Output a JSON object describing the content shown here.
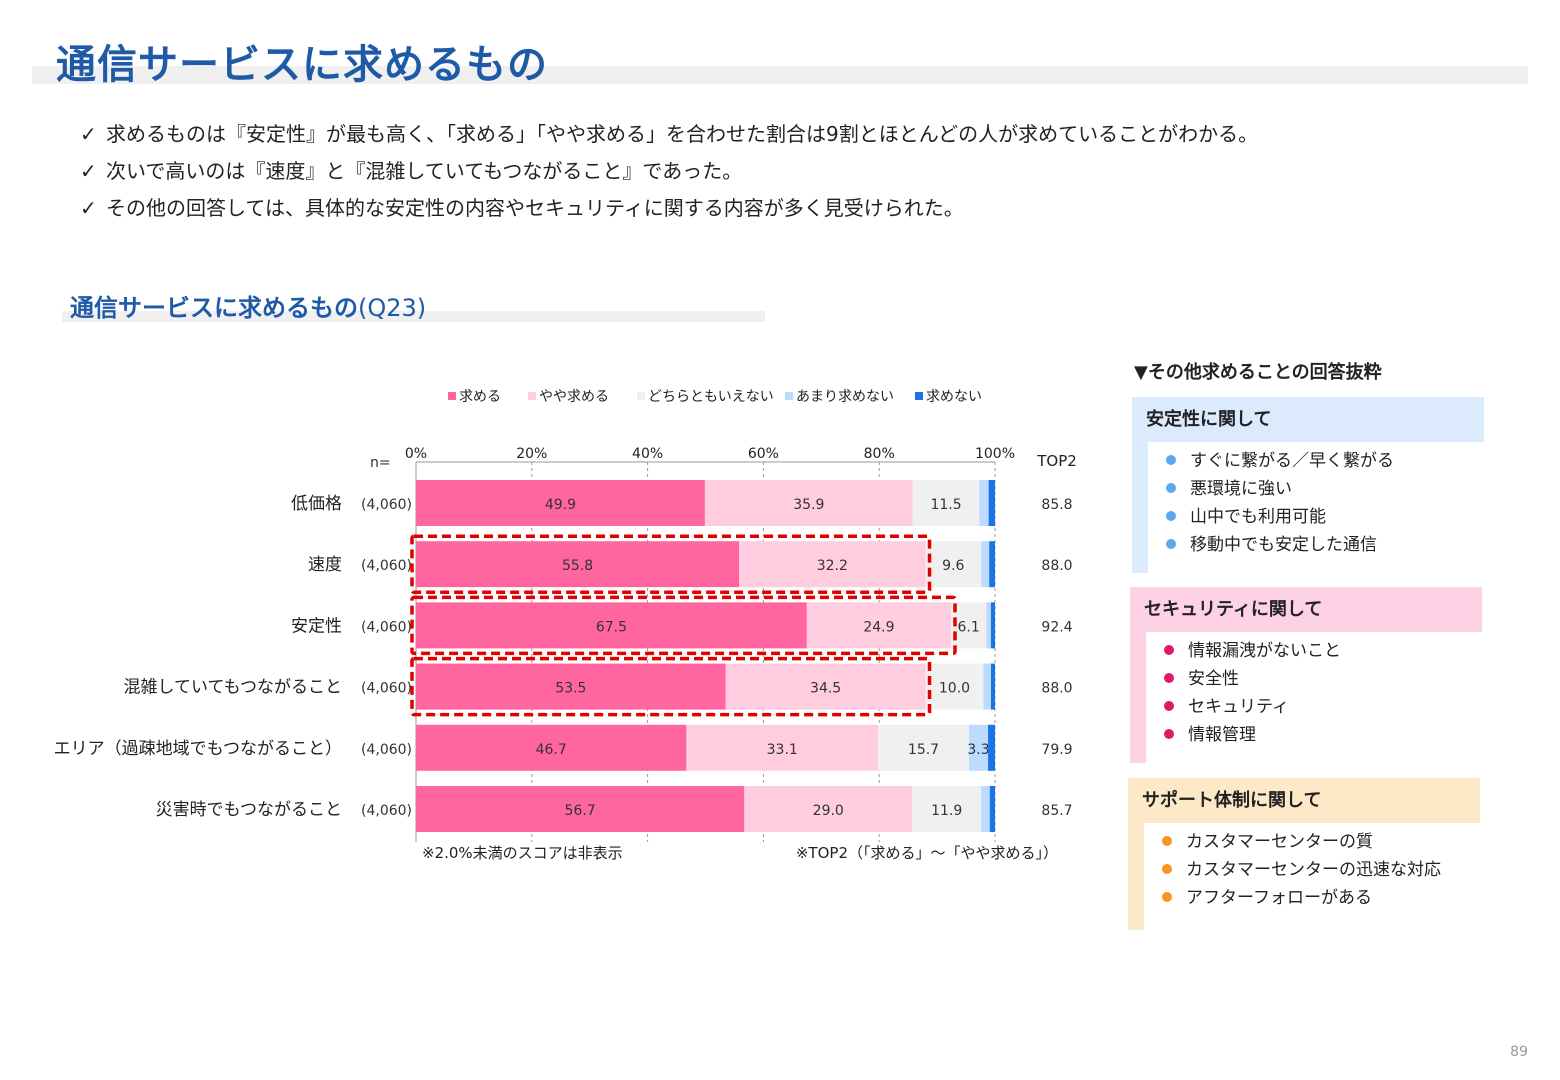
{
  "page": {
    "title": "通信サービスに求めるもの",
    "bullets": [
      "求めるものは『安定性』が最も高く、「求める」「やや求める」を合わせた割合は9割とほとんどの人が求めていることがわかる。",
      "次いで高いのは『速度』と『混雑していてもつながること』であった。",
      "その他の回答しては、具体的な安定性の内容やセキュリティに関する内容が多く見受けられた。"
    ],
    "check_mark": "✓",
    "subtitle": "通信サービスに求めるもの",
    "subtitle_q": "(Q23)",
    "page_number": "89"
  },
  "chart_data": {
    "type": "bar",
    "orientation": "horizontal-stacked-100",
    "categories": [
      "低価格",
      "速度",
      "安定性",
      "混雑していてもつながること",
      "エリア（過疎地域でもつながること）",
      "災害時でもつながること"
    ],
    "n_label": "n=",
    "n_values": [
      "(4,060)",
      "(4,060)",
      "(4,060)",
      "(4,060)",
      "(4,060)",
      "(4,060)"
    ],
    "x_ticks": [
      "0%",
      "20%",
      "40%",
      "60%",
      "80%",
      "100%"
    ],
    "xlim": [
      0,
      100
    ],
    "series": [
      {
        "name": "求める",
        "color": "#ff66a0",
        "values": [
          49.9,
          55.8,
          67.5,
          53.5,
          46.7,
          56.7
        ]
      },
      {
        "name": "やや求める",
        "color": "#ffcce0",
        "values": [
          35.9,
          32.2,
          24.9,
          34.5,
          33.1,
          29.0
        ]
      },
      {
        "name": "どちらともいえない",
        "color": "#f0f0f0",
        "values": [
          11.5,
          9.6,
          6.1,
          10.0,
          15.7,
          11.9
        ]
      },
      {
        "name": "あまり求めない",
        "color": "#bcdcff",
        "values": [
          1.6,
          1.4,
          0.8,
          1.3,
          3.3,
          1.5
        ]
      },
      {
        "name": "求めない",
        "color": "#1a73e8",
        "values": [
          1.1,
          1.0,
          0.7,
          0.7,
          1.2,
          0.9
        ]
      }
    ],
    "label_threshold": 2.0,
    "top2_label": "TOP2",
    "top2": [
      "85.8",
      "88.0",
      "92.4",
      "88.0",
      "79.9",
      "85.7"
    ],
    "highlighted_rows": [
      1,
      2,
      3
    ],
    "highlight_color": "#e00000",
    "legend_position": "top",
    "note_left": "※2.0%未満のスコアは非表示",
    "note_right": "※TOP2（「求める」～「やや求める」）"
  },
  "side": {
    "title": "▼その他求めることの回答抜粋",
    "categories": [
      {
        "label": "安定性に関して",
        "color": "#dbeafc",
        "dot": "#5aa8f0",
        "items": [
          "すぐに繋がる／早く繋がる",
          "悪環境に強い",
          "山中でも利用可能",
          "移動中でも安定した通信"
        ]
      },
      {
        "label": "セキュリティに関して",
        "color": "#fcd2e4",
        "dot": "#e0186a",
        "items": [
          "情報漏洩がないこと",
          "安全性",
          "セキュリティ",
          "情報管理"
        ]
      },
      {
        "label": "サポート体制に関して",
        "color": "#fde8c8",
        "dot": "#f5961e",
        "items": [
          "カスタマーセンターの質",
          "カスタマーセンターの迅速な対応",
          "アフターフォローがある"
        ]
      }
    ]
  }
}
